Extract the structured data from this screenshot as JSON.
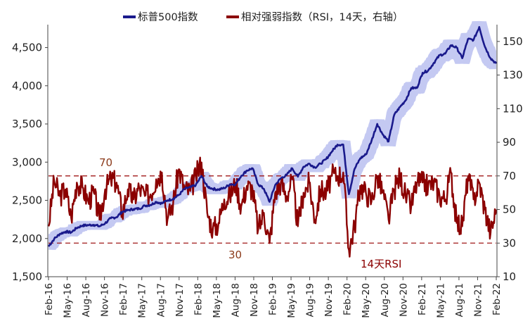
{
  "chart_data": {
    "type": "line",
    "legend": {
      "position": "top",
      "entries": [
        {
          "label": "标普500指数",
          "color": "#1a1a8c"
        },
        {
          "label": "相对强弱指数（RSI，14天，右轴）",
          "color": "#8b0000"
        }
      ]
    },
    "left_axis": {
      "min": 1500,
      "max": 4800,
      "ticks": [
        "1,500",
        "2,000",
        "2,500",
        "3,000",
        "3,500",
        "4,000",
        "4,500"
      ],
      "tick_values": [
        1500,
        2000,
        2500,
        3000,
        3500,
        4000,
        4500
      ]
    },
    "right_axis": {
      "min": 10,
      "max": 160,
      "ticks": [
        "10",
        "30",
        "50",
        "70",
        "90",
        "110",
        "130",
        "150"
      ],
      "tick_values": [
        10,
        30,
        50,
        70,
        90,
        110,
        130,
        150
      ]
    },
    "x_labels": [
      "Feb-16",
      "May-16",
      "Aug-16",
      "Nov-16",
      "Feb-17",
      "May-17",
      "Aug-17",
      "Nov-17",
      "Feb-18",
      "May-18",
      "Aug-18",
      "Nov-18",
      "Feb-19",
      "May-19",
      "Aug-19",
      "Nov-19",
      "Feb-20",
      "May-20",
      "Aug-20",
      "Nov-20",
      "Feb-21",
      "May-21",
      "Aug-21",
      "Nov-21",
      "Feb-22"
    ],
    "annotations": {
      "overbought_label": "70",
      "oversold_label": "30",
      "rsi_label": "14天RSI"
    },
    "reference_lines": [
      70,
      30
    ],
    "series": [
      {
        "name": "标普500指数",
        "axis": "left",
        "color": "#1a1a8c",
        "values": [
          1895,
          1995,
          2060,
          2090,
          2080,
          2140,
          2170,
          2175,
          2180,
          2160,
          2200,
          2265,
          2280,
          2350,
          2370,
          2385,
          2390,
          2430,
          2440,
          2480,
          2460,
          2500,
          2520,
          2570,
          2650,
          2670,
          2700,
          2820,
          2680,
          2650,
          2640,
          2660,
          2710,
          2710,
          2820,
          2890,
          2920,
          2710,
          2650,
          2480,
          2700,
          2790,
          2830,
          2920,
          2810,
          2940,
          2980,
          2930,
          2980,
          3040,
          3140,
          3230,
          3230,
          2580,
          2910,
          3050,
          3100,
          3280,
          3500,
          3360,
          3270,
          3620,
          3720,
          3810,
          3970,
          3970,
          4170,
          4200,
          4300,
          4400,
          4420,
          4530,
          4500,
          4360,
          4610,
          4600,
          4770,
          4510,
          4360,
          4290
        ]
      },
      {
        "name": "相对强弱指数（RSI，14天，右轴）",
        "axis": "right",
        "color": "#8b0000",
        "values": [
          40,
          67,
          58,
          62,
          45,
          66,
          63,
          55,
          60,
          44,
          62,
          68,
          66,
          48,
          62,
          56,
          63,
          58,
          59,
          68,
          72,
          44,
          54,
          74,
          62,
          61,
          70,
          78,
          48,
          38,
          42,
          56,
          58,
          66,
          52,
          64,
          62,
          38,
          48,
          30,
          60,
          66,
          58,
          68,
          40,
          60,
          66,
          44,
          62,
          60,
          70,
          70,
          72,
          26,
          40,
          64,
          60,
          55,
          70,
          60,
          44,
          62,
          70,
          58,
          52,
          66,
          66,
          64,
          66,
          58,
          56,
          72,
          42,
          40,
          70,
          56,
          66,
          50,
          36,
          50
        ]
      }
    ]
  }
}
